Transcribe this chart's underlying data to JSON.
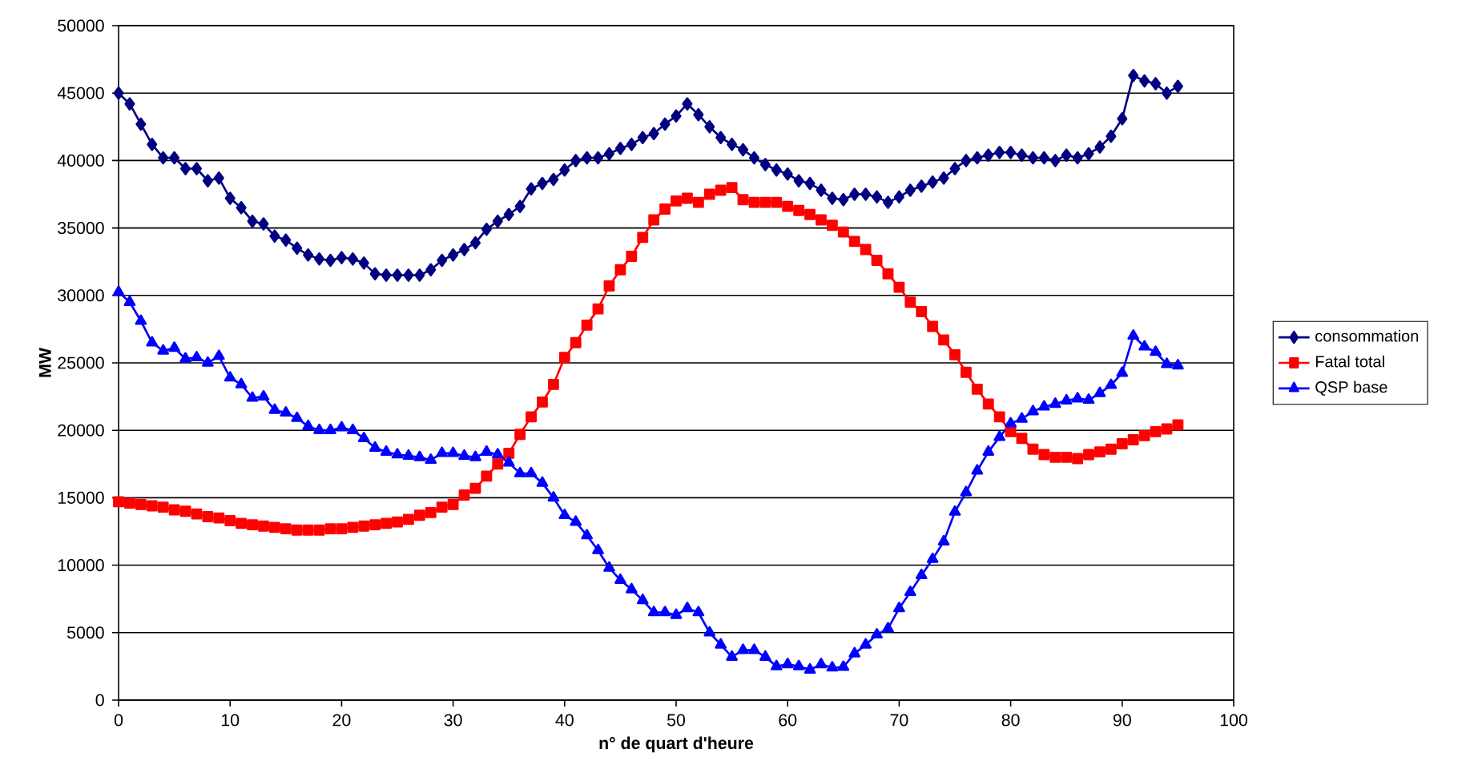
{
  "chart_data": {
    "type": "line",
    "xlabel": "n° de quart d'heure",
    "ylabel": "MW",
    "x": [
      0,
      1,
      2,
      3,
      4,
      5,
      6,
      7,
      8,
      9,
      10,
      11,
      12,
      13,
      14,
      15,
      16,
      17,
      18,
      19,
      20,
      21,
      22,
      23,
      24,
      25,
      26,
      27,
      28,
      29,
      30,
      31,
      32,
      33,
      34,
      35,
      36,
      37,
      38,
      39,
      40,
      41,
      42,
      43,
      44,
      45,
      46,
      47,
      48,
      49,
      50,
      51,
      52,
      53,
      54,
      55,
      56,
      57,
      58,
      59,
      60,
      61,
      62,
      63,
      64,
      65,
      66,
      67,
      68,
      69,
      70,
      71,
      72,
      73,
      74,
      75,
      76,
      77,
      78,
      79,
      80,
      81,
      82,
      83,
      84,
      85,
      86,
      87,
      88,
      89,
      90,
      91,
      92,
      93,
      94,
      95
    ],
    "series": [
      {
        "name": "consommation",
        "color": "#000080",
        "marker": "diamond",
        "values": [
          45000,
          44200,
          42700,
          41200,
          40200,
          40200,
          39400,
          39400,
          38500,
          38700,
          37200,
          36500,
          35500,
          35300,
          34400,
          34100,
          33500,
          33000,
          32700,
          32600,
          32800,
          32700,
          32400,
          31600,
          31500,
          31500,
          31500,
          31500,
          31900,
          32600,
          33000,
          33400,
          33900,
          34900,
          35500,
          36000,
          36600,
          37900,
          38300,
          38600,
          39300,
          40000,
          40200,
          40200,
          40500,
          40900,
          41200,
          41700,
          42000,
          42700,
          43300,
          44200,
          43400,
          42500,
          41700,
          41200,
          40800,
          40200,
          39700,
          39300,
          39000,
          38500,
          38300,
          37800,
          37200,
          37100,
          37500,
          37500,
          37300,
          36900,
          37300,
          37800,
          38100,
          38400,
          38700,
          39400,
          40000,
          40200,
          40400,
          40600,
          40600,
          40400,
          40200,
          40200,
          40000,
          40400,
          40200,
          40500,
          41000,
          41800,
          43100,
          46300,
          45900,
          45700,
          45000,
          45500
        ]
      },
      {
        "name": "Fatal total",
        "color": "#ff0000",
        "marker": "square",
        "values": [
          14700,
          14600,
          14500,
          14400,
          14300,
          14100,
          14000,
          13800,
          13600,
          13500,
          13300,
          13100,
          13000,
          12900,
          12800,
          12700,
          12600,
          12600,
          12600,
          12700,
          12700,
          12800,
          12900,
          13000,
          13100,
          13200,
          13400,
          13700,
          13900,
          14300,
          14500,
          15200,
          15700,
          16600,
          17500,
          18300,
          19700,
          21000,
          22100,
          23400,
          25400,
          26500,
          27800,
          29000,
          30700,
          31900,
          32900,
          34300,
          35600,
          36400,
          37000,
          37200,
          36900,
          37500,
          37800,
          38000,
          37100,
          36900,
          36900,
          36900,
          36600,
          36300,
          36000,
          35600,
          35200,
          34700,
          34000,
          33400,
          32600,
          31600,
          30600,
          29500,
          28800,
          27700,
          26700,
          25600,
          24300,
          23050,
          21950,
          21000,
          19900,
          19400,
          18600,
          18200,
          18000,
          18000,
          17900,
          18200,
          18400,
          18600,
          19000,
          19300,
          19600,
          19900,
          20100,
          20400
        ]
      },
      {
        "name": "QSP base",
        "color": "#0000ff",
        "marker": "triangle",
        "values": [
          30250,
          29500,
          28100,
          26500,
          25900,
          26100,
          25300,
          25400,
          25000,
          25500,
          23900,
          23400,
          22400,
          22500,
          21500,
          21300,
          20900,
          20300,
          20000,
          20000,
          20200,
          20000,
          19400,
          18700,
          18400,
          18200,
          18100,
          18000,
          17800,
          18300,
          18300,
          18100,
          18000,
          18400,
          18200,
          17600,
          16800,
          16800,
          16100,
          15000,
          13700,
          13200,
          12200,
          11100,
          9800,
          8900,
          8200,
          7400,
          6500,
          6500,
          6300,
          6800,
          6500,
          5000,
          4100,
          3200,
          3700,
          3700,
          3200,
          2500,
          2650,
          2500,
          2250,
          2650,
          2400,
          2450,
          3450,
          4100,
          4850,
          5300,
          6800,
          8000,
          9250,
          10450,
          11750,
          13950,
          15400,
          17000,
          18400,
          19500,
          20500,
          20850,
          21400,
          21750,
          21950,
          22200,
          22350,
          22250,
          22750,
          23350,
          24250,
          27000,
          26200,
          25800,
          24900,
          24800
        ]
      }
    ],
    "xlim": [
      0,
      100
    ],
    "ylim": [
      0,
      50000
    ],
    "xticks": [
      0,
      10,
      20,
      30,
      40,
      50,
      60,
      70,
      80,
      90,
      100
    ],
    "yticks": [
      0,
      5000,
      10000,
      15000,
      20000,
      25000,
      30000,
      35000,
      40000,
      45000,
      50000
    ],
    "grid": "y",
    "legend": "right"
  }
}
